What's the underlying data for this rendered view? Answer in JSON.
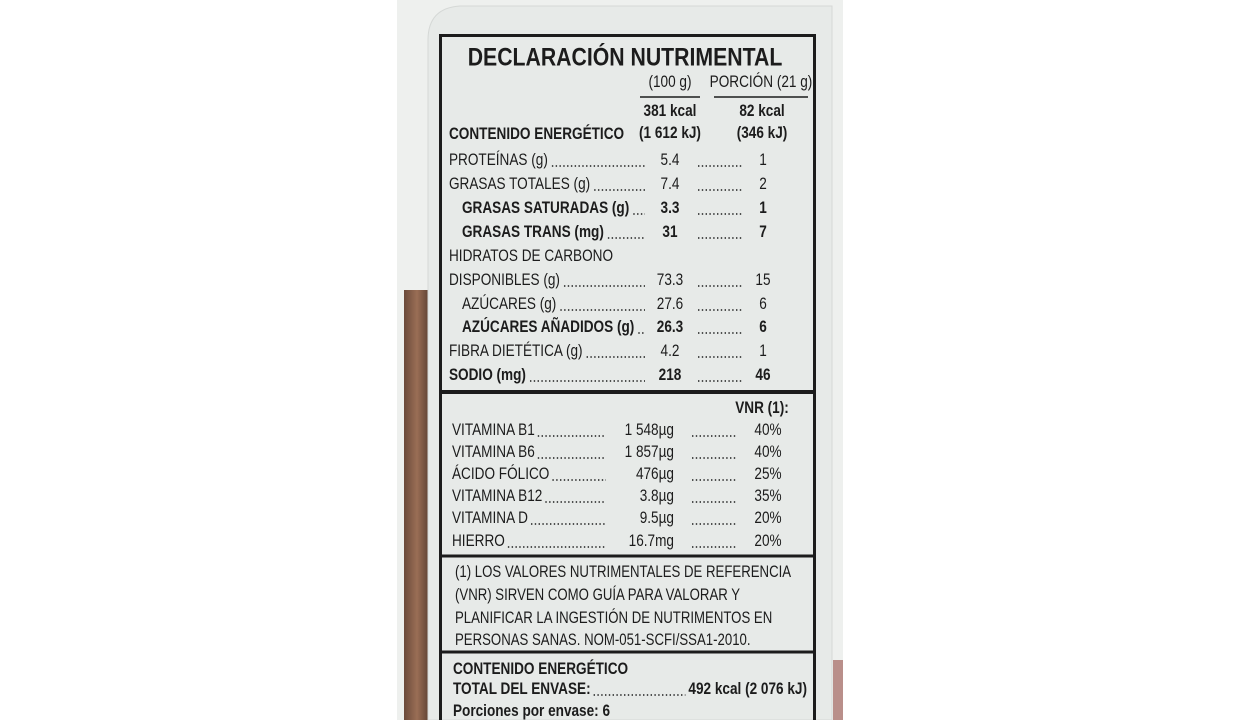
{
  "title": "DECLARACIÓN NUTRIMENTAL",
  "columns": [
    "(100 g)",
    "PORCIÓN (21 g)"
  ],
  "energy": {
    "label": "CONTENIDO ENERGÉTICO",
    "per100": [
      "381 kcal",
      "(1 612 kJ)"
    ],
    "portion": [
      "82 kcal",
      "(346 kJ)"
    ]
  },
  "nutrients": [
    {
      "label": "PROTEÍNAS (g)",
      "per100": "5.4",
      "portion": "1"
    },
    {
      "label": "GRASAS TOTALES (g)",
      "per100": "7.4",
      "portion": "2"
    },
    {
      "label": "GRASAS SATURADAS (g)",
      "per100": "3.3",
      "portion": "1"
    },
    {
      "label": "GRASAS TRANS (mg)",
      "per100": "31",
      "portion": "7"
    },
    {
      "label": "HIDRATOS DE CARBONO"
    },
    {
      "label": "DISPONIBLES (g)",
      "per100": "73.3",
      "portion": "15"
    },
    {
      "label": "AZÚCARES (g)",
      "per100": "27.6",
      "portion": "6"
    },
    {
      "label": "AZÚCARES AÑADIDOS (g)",
      "per100": "26.3",
      "portion": "6"
    },
    {
      "label": "FIBRA DIETÉTICA (g)",
      "per100": "4.2",
      "portion": "1"
    },
    {
      "label": "SODIO (mg)",
      "per100": "218",
      "portion": "46"
    }
  ],
  "vnr_header": "VNR (1):",
  "vitamins": [
    {
      "label": "VITAMINA B1",
      "amount": "1 548µg",
      "vnr": "40%"
    },
    {
      "label": "VITAMINA B6",
      "amount": "1 857µg",
      "vnr": "40%"
    },
    {
      "label": "ÁCIDO FÓLICO",
      "amount": "476µg",
      "vnr": "25%"
    },
    {
      "label": "VITAMINA B12",
      "amount": "3.8µg",
      "vnr": "35%"
    },
    {
      "label": "VITAMINA D",
      "amount": "9.5µg",
      "vnr": "20%"
    },
    {
      "label": "HIERRO",
      "amount": "16.7mg",
      "vnr": "20%"
    }
  ],
  "footnote": [
    "(1) LOS VALORES NUTRIMENTALES DE REFERENCIA",
    "(VNR) SIRVEN COMO GUÍA PARA VALORAR Y",
    "PLANIFICAR LA INGESTIÓN DE NUTRIMENTOS EN",
    "PERSONAS SANAS. NOM-051-SCFI/SSA1-2010."
  ],
  "package": {
    "heading": "CONTENIDO ENERGÉTICO",
    "total_label": "TOTAL DEL ENVASE:",
    "total_value": "492 kcal (2 076 kJ)",
    "servings": "Porciones por envase: 6"
  }
}
